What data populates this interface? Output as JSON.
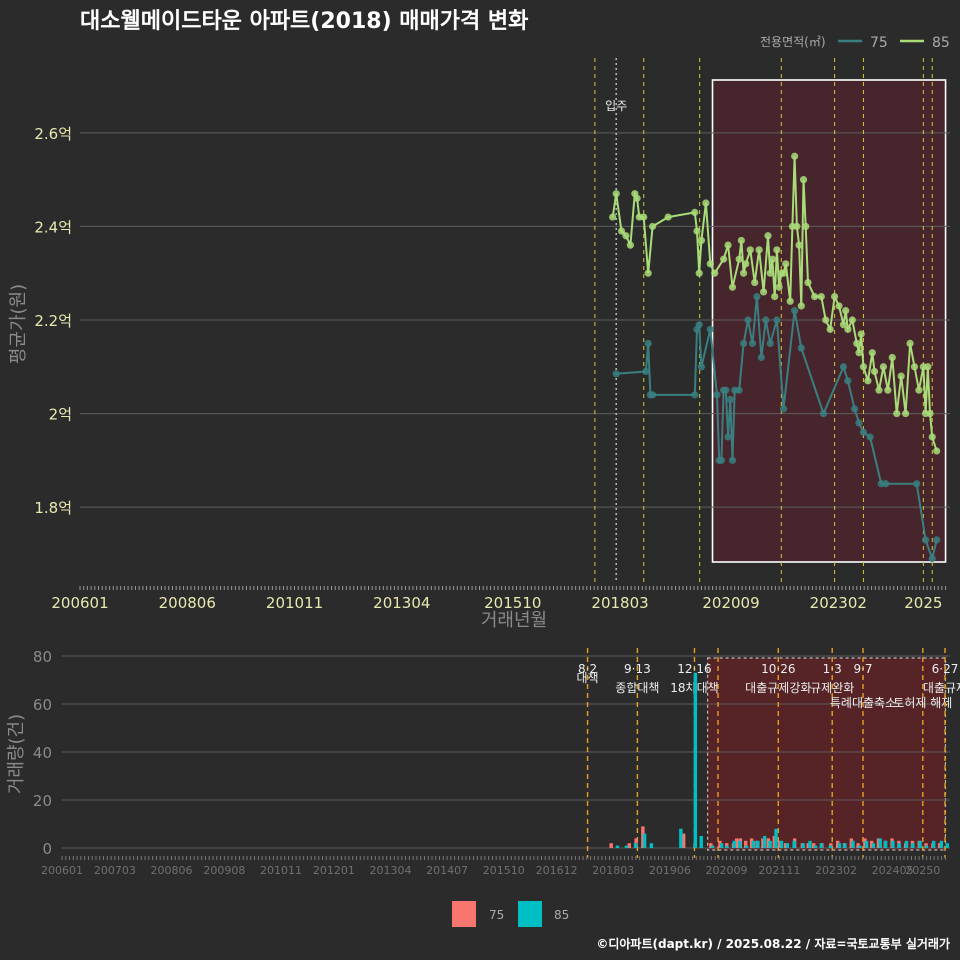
{
  "title": "대소웰메이드타운 아파트(2018) 매매가격 변화",
  "source": "©디아파트(dapt.kr) / 2025.08.22 / 자료=국토교통부 실거래가",
  "colors": {
    "s75_price": "#3a7f80",
    "s85_price": "#a8dc78",
    "s75_bar": "#f8766d",
    "s85_bar": "#00bfc4",
    "background": "#2b2b2b",
    "highlight": "#6a1f2e"
  },
  "chart_data": [
    {
      "type": "line",
      "title": "대소웰메이드타운 아파트(2018) 매매가격 변화",
      "xlabel": "거래년월",
      "ylabel": "평균가(원)",
      "xticks": [
        "200601",
        "200806",
        "201011",
        "201304",
        "201510",
        "201803",
        "202009",
        "202302",
        "2025"
      ],
      "yticks": [
        {
          "v": 1.8,
          "label": "1.8억"
        },
        {
          "v": 2.0,
          "label": "2억"
        },
        {
          "v": 2.2,
          "label": "2.2억"
        },
        {
          "v": 2.4,
          "label": "2.4억"
        },
        {
          "v": 2.6,
          "label": "2.6억"
        }
      ],
      "xlim": [
        2006.0,
        2025.6
      ],
      "ylim": [
        1.64,
        2.76
      ],
      "legend_title": "전용면적(㎡)",
      "annotation": "입주",
      "annotation_x": 2018.08,
      "highlight_range": [
        2020.25,
        2025.5
      ],
      "vlines": [
        2017.6,
        2018.7,
        2019.96,
        2021.8,
        2023.0,
        2023.65,
        2025.0,
        2025.2
      ],
      "series": [
        {
          "name": "75",
          "points": [
            [
              2018.08,
              2.085
            ],
            [
              2018.75,
              2.09
            ],
            [
              2018.8,
              2.15
            ],
            [
              2018.85,
              2.04
            ],
            [
              2018.9,
              2.04
            ],
            [
              2019.85,
              2.04
            ],
            [
              2019.9,
              2.18
            ],
            [
              2019.95,
              2.19
            ],
            [
              2020.0,
              2.1
            ],
            [
              2020.2,
              2.18
            ],
            [
              2020.35,
              2.04
            ],
            [
              2020.4,
              1.9
            ],
            [
              2020.45,
              1.9
            ],
            [
              2020.5,
              2.05
            ],
            [
              2020.55,
              2.05
            ],
            [
              2020.6,
              1.95
            ],
            [
              2020.65,
              2.03
            ],
            [
              2020.7,
              1.9
            ],
            [
              2020.75,
              2.05
            ],
            [
              2020.85,
              2.05
            ],
            [
              2020.95,
              2.15
            ],
            [
              2021.05,
              2.2
            ],
            [
              2021.15,
              2.15
            ],
            [
              2021.25,
              2.25
            ],
            [
              2021.35,
              2.12
            ],
            [
              2021.45,
              2.2
            ],
            [
              2021.55,
              2.15
            ],
            [
              2021.7,
              2.2
            ],
            [
              2021.85,
              2.01
            ],
            [
              2022.1,
              2.22
            ],
            [
              2022.25,
              2.14
            ],
            [
              2022.75,
              2.0
            ],
            [
              2023.2,
              2.1
            ],
            [
              2023.3,
              2.07
            ],
            [
              2023.45,
              2.01
            ],
            [
              2023.55,
              1.98
            ],
            [
              2023.65,
              1.96
            ],
            [
              2023.8,
              1.95
            ],
            [
              2024.05,
              1.85
            ],
            [
              2024.15,
              1.85
            ],
            [
              2024.85,
              1.85
            ],
            [
              2025.05,
              1.73
            ],
            [
              2025.2,
              1.69
            ],
            [
              2025.3,
              1.73
            ]
          ]
        },
        {
          "name": "85",
          "points": [
            [
              2018.0,
              2.42
            ],
            [
              2018.08,
              2.47
            ],
            [
              2018.2,
              2.39
            ],
            [
              2018.3,
              2.38
            ],
            [
              2018.4,
              2.36
            ],
            [
              2018.5,
              2.47
            ],
            [
              2018.55,
              2.46
            ],
            [
              2018.6,
              2.42
            ],
            [
              2018.7,
              2.42
            ],
            [
              2018.8,
              2.3
            ],
            [
              2018.9,
              2.4
            ],
            [
              2019.25,
              2.42
            ],
            [
              2019.85,
              2.43
            ],
            [
              2019.9,
              2.39
            ],
            [
              2019.95,
              2.3
            ],
            [
              2020.0,
              2.37
            ],
            [
              2020.1,
              2.45
            ],
            [
              2020.2,
              2.32
            ],
            [
              2020.3,
              2.3
            ],
            [
              2020.5,
              2.33
            ],
            [
              2020.6,
              2.36
            ],
            [
              2020.7,
              2.27
            ],
            [
              2020.85,
              2.33
            ],
            [
              2020.9,
              2.37
            ],
            [
              2020.95,
              2.3
            ],
            [
              2021.0,
              2.32
            ],
            [
              2021.1,
              2.35
            ],
            [
              2021.2,
              2.28
            ],
            [
              2021.3,
              2.35
            ],
            [
              2021.4,
              2.26
            ],
            [
              2021.5,
              2.38
            ],
            [
              2021.55,
              2.3
            ],
            [
              2021.6,
              2.33
            ],
            [
              2021.65,
              2.25
            ],
            [
              2021.7,
              2.35
            ],
            [
              2021.75,
              2.27
            ],
            [
              2021.8,
              2.3
            ],
            [
              2021.85,
              2.3
            ],
            [
              2021.9,
              2.32
            ],
            [
              2022.0,
              2.24
            ],
            [
              2022.05,
              2.4
            ],
            [
              2022.1,
              2.55
            ],
            [
              2022.15,
              2.4
            ],
            [
              2022.2,
              2.36
            ],
            [
              2022.25,
              2.23
            ],
            [
              2022.3,
              2.5
            ],
            [
              2022.35,
              2.4
            ],
            [
              2022.4,
              2.28
            ],
            [
              2022.55,
              2.25
            ],
            [
              2022.7,
              2.25
            ],
            [
              2022.8,
              2.2
            ],
            [
              2022.9,
              2.18
            ],
            [
              2023.0,
              2.25
            ],
            [
              2023.1,
              2.23
            ],
            [
              2023.2,
              2.19
            ],
            [
              2023.25,
              2.22
            ],
            [
              2023.3,
              2.18
            ],
            [
              2023.4,
              2.2
            ],
            [
              2023.5,
              2.15
            ],
            [
              2023.55,
              2.13
            ],
            [
              2023.6,
              2.17
            ],
            [
              2023.65,
              2.1
            ],
            [
              2023.75,
              2.07
            ],
            [
              2023.85,
              2.13
            ],
            [
              2023.9,
              2.09
            ],
            [
              2024.0,
              2.05
            ],
            [
              2024.1,
              2.1
            ],
            [
              2024.2,
              2.05
            ],
            [
              2024.3,
              2.12
            ],
            [
              2024.4,
              2.0
            ],
            [
              2024.5,
              2.08
            ],
            [
              2024.6,
              2.0
            ],
            [
              2024.7,
              2.15
            ],
            [
              2024.8,
              2.1
            ],
            [
              2024.9,
              2.05
            ],
            [
              2025.0,
              2.1
            ],
            [
              2025.05,
              2.0
            ],
            [
              2025.1,
              2.1
            ],
            [
              2025.15,
              2.0
            ],
            [
              2025.2,
              1.95
            ],
            [
              2025.3,
              1.92
            ]
          ]
        }
      ]
    },
    {
      "type": "bar",
      "ylabel": "거래량(건)",
      "xticks": [
        "200601",
        "200703",
        "200806",
        "200908",
        "201011",
        "201201",
        "201304",
        "201407",
        "201510",
        "201612",
        "201803",
        "201906",
        "202009",
        "202111",
        "202302",
        "202405",
        "20250"
      ],
      "yticks": [
        0,
        20,
        40,
        60,
        80
      ],
      "xlim": [
        2006.0,
        2025.6
      ],
      "ylim": [
        0,
        80
      ],
      "highlight_range": [
        2020.25,
        2025.5
      ],
      "policy_lines": [
        {
          "x": 2017.6,
          "date": "8·2",
          "label": "대책"
        },
        {
          "x": 2018.7,
          "date": "9·13",
          "label": "종합대책"
        },
        {
          "x": 2019.96,
          "date": "12·16",
          "label": "18차대책"
        },
        {
          "x": 2020.48,
          "date": "",
          "label": ""
        },
        {
          "x": 2021.81,
          "date": "10·26",
          "label": "대출규제강화"
        },
        {
          "x": 2023.0,
          "date": "1·3",
          "label": "규제완화"
        },
        {
          "x": 2023.68,
          "date": "9·7",
          "label": "특례대출축소"
        },
        {
          "x": 2025.0,
          "date": "",
          "label": "토허제 해제"
        },
        {
          "x": 2025.49,
          "date": "6·27",
          "label": "대출규제"
        }
      ],
      "series": [
        {
          "name": "75",
          "points": [
            [
              2018.15,
              2
            ],
            [
              2018.55,
              2
            ],
            [
              2018.7,
              4
            ],
            [
              2018.85,
              9
            ],
            [
              2019.75,
              6
            ],
            [
              2020.0,
              2
            ],
            [
              2020.35,
              2
            ],
            [
              2020.55,
              3
            ],
            [
              2020.7,
              2
            ],
            [
              2020.85,
              2
            ],
            [
              2020.92,
              4
            ],
            [
              2021.0,
              4
            ],
            [
              2021.12,
              3
            ],
            [
              2021.25,
              4
            ],
            [
              2021.37,
              3
            ],
            [
              2021.5,
              4
            ],
            [
              2021.62,
              4
            ],
            [
              2021.75,
              5
            ],
            [
              2021.87,
              3
            ],
            [
              2022.0,
              2
            ],
            [
              2022.2,
              4
            ],
            [
              2022.37,
              2
            ],
            [
              2022.5,
              2
            ],
            [
              2022.62,
              2
            ],
            [
              2022.8,
              2
            ],
            [
              2023.0,
              2
            ],
            [
              2023.15,
              3
            ],
            [
              2023.3,
              2
            ],
            [
              2023.45,
              4
            ],
            [
              2023.6,
              2
            ],
            [
              2023.75,
              4
            ],
            [
              2023.9,
              3
            ],
            [
              2024.05,
              4
            ],
            [
              2024.2,
              3
            ],
            [
              2024.35,
              4
            ],
            [
              2024.5,
              3
            ],
            [
              2024.65,
              2
            ],
            [
              2024.8,
              3
            ],
            [
              2024.95,
              3
            ],
            [
              2025.1,
              2
            ],
            [
              2025.25,
              2
            ],
            [
              2025.4,
              2
            ]
          ]
        },
        {
          "name": "85",
          "points": [
            [
              2018.2,
              1
            ],
            [
              2018.4,
              1
            ],
            [
              2018.6,
              2
            ],
            [
              2018.8,
              6
            ],
            [
              2018.95,
              2
            ],
            [
              2019.6,
              8
            ],
            [
              2019.92,
              73
            ],
            [
              2020.05,
              5
            ],
            [
              2020.3,
              1
            ],
            [
              2020.5,
              2
            ],
            [
              2020.62,
              1
            ],
            [
              2020.78,
              3
            ],
            [
              2020.9,
              3
            ],
            [
              2021.05,
              1
            ],
            [
              2021.2,
              3
            ],
            [
              2021.3,
              3
            ],
            [
              2021.45,
              5
            ],
            [
              2021.57,
              3
            ],
            [
              2021.7,
              8
            ],
            [
              2021.82,
              3
            ],
            [
              2021.95,
              2
            ],
            [
              2022.1,
              3
            ],
            [
              2022.3,
              2
            ],
            [
              2022.45,
              3
            ],
            [
              2022.57,
              1
            ],
            [
              2022.7,
              2
            ],
            [
              2022.9,
              1
            ],
            [
              2023.1,
              2
            ],
            [
              2023.22,
              2
            ],
            [
              2023.4,
              3
            ],
            [
              2023.55,
              1
            ],
            [
              2023.7,
              3
            ],
            [
              2023.85,
              2
            ],
            [
              2024.0,
              4
            ],
            [
              2024.12,
              3
            ],
            [
              2024.28,
              3
            ],
            [
              2024.42,
              2
            ],
            [
              2024.58,
              3
            ],
            [
              2024.72,
              2
            ],
            [
              2024.88,
              3
            ],
            [
              2025.02,
              1
            ],
            [
              2025.18,
              3
            ],
            [
              2025.35,
              3
            ],
            [
              2025.48,
              2
            ]
          ]
        }
      ]
    }
  ]
}
